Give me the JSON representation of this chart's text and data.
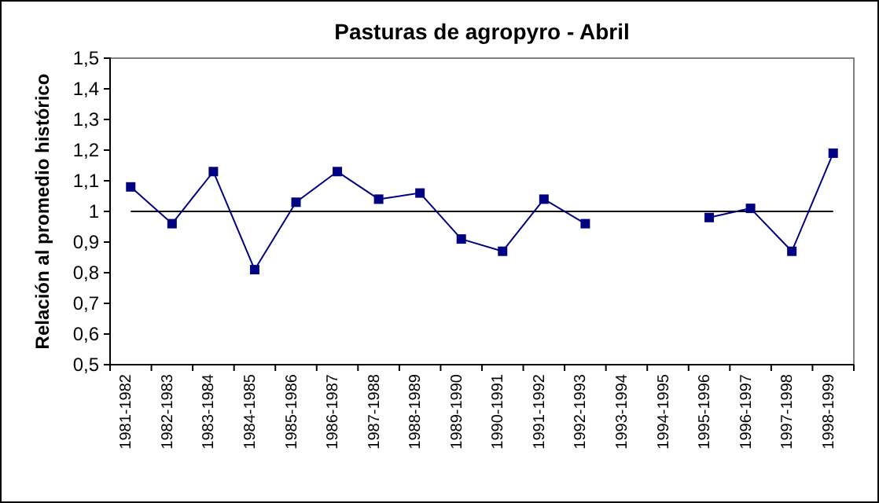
{
  "chart_data": {
    "type": "line",
    "title": "Pasturas de agropyro - Abril",
    "ylabel": "Relación al promedio histórico",
    "categories": [
      "1981-1982",
      "1982-1983",
      "1983-1984",
      "1984-1985",
      "1985-1986",
      "1986-1987",
      "1987-1988",
      "1988-1989",
      "1989-1990",
      "1990-1991",
      "1991-1992",
      "1992-1993",
      "1993-1994",
      "1994-1995",
      "1995-1996",
      "1996-1997",
      "1997-1998",
      "1998-1999"
    ],
    "series": [
      {
        "color": "#000080",
        "values": [
          1.08,
          0.96,
          1.13,
          0.81,
          1.03,
          1.13,
          1.04,
          1.06,
          0.91,
          0.87,
          1.04,
          0.96,
          null,
          null,
          0.98,
          1.01,
          0.87,
          1.19
        ]
      }
    ],
    "ylim": [
      0.5,
      1.5
    ],
    "yticks": [
      {
        "value": 0.5,
        "label": "0,5"
      },
      {
        "value": 0.6,
        "label": "0,6"
      },
      {
        "value": 0.7,
        "label": "0,7"
      },
      {
        "value": 0.8,
        "label": "0,8"
      },
      {
        "value": 0.9,
        "label": "0,9"
      },
      1,
      {
        "value": 1.1,
        "label": "1,1"
      },
      {
        "value": 1.2,
        "label": "1,2"
      },
      {
        "value": 1.3,
        "label": "1,3"
      },
      {
        "value": 1.4,
        "label": "1,4"
      },
      {
        "value": 1.5,
        "label": "1,5"
      }
    ],
    "ref_lines": [
      {
        "axis": "y",
        "value": 1,
        "color": "#000000"
      }
    ],
    "marker": "square",
    "line_style": "solid"
  }
}
